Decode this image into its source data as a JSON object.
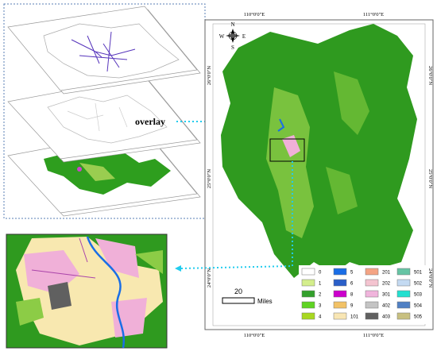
{
  "annotation": "overlay",
  "map": {
    "top_labels": [
      "110°0'0\"E",
      "111°0'0\"E"
    ],
    "bottom_labels": [
      "110°0'0\"E",
      "111°0'0\"E"
    ],
    "left_labels": [
      "26°0'0\"N",
      "25°0'0\"N",
      "24°0'0\"N"
    ],
    "right_labels": [
      "26°0'0\"N",
      "25°0'0\"N",
      "24°0'0\"N"
    ],
    "compass": {
      "n": "N",
      "s": "S",
      "e": "E",
      "w": "W"
    },
    "scale": {
      "distance": "20",
      "unit": "Miles"
    },
    "legend": [
      {
        "code": "0",
        "color": "#ffffff"
      },
      {
        "code": "1",
        "color": "#d4ee8c"
      },
      {
        "code": "2",
        "color": "#33a02c"
      },
      {
        "code": "3",
        "color": "#5fd422"
      },
      {
        "code": "4",
        "color": "#a8d820"
      },
      {
        "code": "5",
        "color": "#1a6ee6"
      },
      {
        "code": "6",
        "color": "#2a5fc8"
      },
      {
        "code": "8",
        "color": "#cc00cc"
      },
      {
        "code": "9",
        "color": "#f2c266"
      },
      {
        "code": "101",
        "color": "#f8e6b4"
      },
      {
        "code": "201",
        "color": "#f4a484"
      },
      {
        "code": "202",
        "color": "#f4c4d0"
      },
      {
        "code": "301",
        "color": "#f0b4dc"
      },
      {
        "code": "402",
        "color": "#c4c4c4"
      },
      {
        "code": "403",
        "color": "#606060"
      },
      {
        "code": "501",
        "color": "#66c4a4"
      },
      {
        "code": "502",
        "color": "#c4daf2"
      },
      {
        "code": "503",
        "color": "#22e0d0"
      },
      {
        "code": "504",
        "color": "#5080c4"
      },
      {
        "code": "505",
        "color": "#c8c080"
      }
    ]
  }
}
